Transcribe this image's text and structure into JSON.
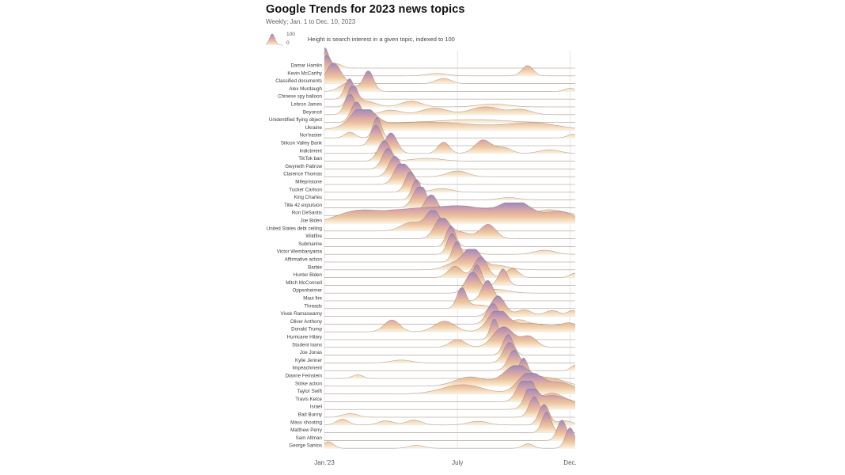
{
  "header": {
    "title": "Google Trends for 2023 news topics",
    "subtitle": "Weekly; Jan. 1 to Dec. 10, 2023"
  },
  "legend": {
    "max_label": "100",
    "min_label": "0",
    "caption": "Height is search interest in a given topic, indexed to 100"
  },
  "axis": {
    "ticks": [
      {
        "label": "Jan.'23",
        "week": 0
      },
      {
        "label": "July",
        "week": 26
      },
      {
        "label": "Dec.",
        "week": 48
      }
    ]
  },
  "colors": {
    "ridge_gradient": [
      "#9c8ac0",
      "#d5a2a8",
      "#edc59e",
      "#fcf1de"
    ],
    "ridge_offsets": [
      0,
      0.35,
      0.68,
      1
    ],
    "ridge_stroke": "rgba(122,92,86,0.5)",
    "gridline": "#dadada",
    "row_line": "#e7e1d6",
    "title": "#111111",
    "subtitle": "#666666",
    "label": "#3c3c3c",
    "axis_label": "#555555"
  },
  "chart_data": {
    "type": "ridgeline",
    "title": "Google Trends for 2023 news topics",
    "x_unit": "week",
    "x_range": [
      0,
      49
    ],
    "value_range": [
      0,
      100
    ],
    "note": "Each series is weekly Google search interest indexed to 100; curves reconstructed as gaussian peaks {week, value, width}",
    "series": [
      {
        "name": "Damar Hamlin",
        "peaks": [
          {
            "week": 0,
            "value": 100,
            "width": 0.8
          },
          {
            "week": 2.5,
            "value": 20,
            "width": 1
          }
        ]
      },
      {
        "name": "Kevin McCarthy",
        "peaks": [
          {
            "week": 0.5,
            "value": 100,
            "width": 0.9
          },
          {
            "week": 22,
            "value": 12,
            "width": 2
          },
          {
            "week": 39.7,
            "value": 50,
            "width": 1.1
          }
        ]
      },
      {
        "name": "Classified documents",
        "peaks": [
          {
            "week": 1.8,
            "value": 100,
            "width": 1.4
          },
          {
            "week": 23.3,
            "value": 25,
            "width": 1.5
          }
        ]
      },
      {
        "name": "Alex Murdaugh",
        "peaks": [
          {
            "week": 4.5,
            "value": 40,
            "width": 1.5
          },
          {
            "week": 8.6,
            "value": 100,
            "width": 1
          },
          {
            "week": 48,
            "value": 15,
            "width": 1
          }
        ]
      },
      {
        "name": "Chinese spy balloon",
        "peaks": [
          {
            "week": 4.9,
            "value": 100,
            "width": 0.9
          }
        ]
      },
      {
        "name": "Lebron James",
        "peaks": [
          {
            "week": 5.5,
            "value": 100,
            "width": 0.9
          },
          {
            "week": 8,
            "value": 28,
            "width": 2
          },
          {
            "week": 17,
            "value": 28,
            "width": 2
          },
          {
            "week": 33,
            "value": 14,
            "width": 3
          }
        ]
      },
      {
        "name": "Beyoncé",
        "peaks": [
          {
            "week": 5,
            "value": 100,
            "width": 1
          },
          {
            "week": 13,
            "value": 22,
            "width": 2
          },
          {
            "week": 21.5,
            "value": 32,
            "width": 2.5
          },
          {
            "week": 31.5,
            "value": 38,
            "width": 3
          },
          {
            "week": 38.5,
            "value": 24,
            "width": 2
          }
        ]
      },
      {
        "name": "Unidentified flying object",
        "peaks": [
          {
            "week": 6.3,
            "value": 100,
            "width": 1.1
          },
          {
            "week": 29,
            "value": 14,
            "width": 6
          }
        ]
      },
      {
        "name": "Ukraine",
        "peaks": [
          {
            "week": 7.5,
            "value": 100,
            "width": 2.2
          },
          {
            "week": 20,
            "value": 40,
            "width": 10
          },
          {
            "week": 41,
            "value": 32,
            "width": 5
          }
        ]
      },
      {
        "name": "Nor'easter",
        "peaks": [
          {
            "week": 5,
            "value": 28,
            "width": 1
          },
          {
            "week": 10.3,
            "value": 100,
            "width": 0.8
          },
          {
            "week": 48.5,
            "value": 18,
            "width": 1
          }
        ]
      },
      {
        "name": "Silicon Valley Bank",
        "peaks": [
          {
            "week": 10.1,
            "value": 100,
            "width": 1
          }
        ]
      },
      {
        "name": "Indictment",
        "peaks": [
          {
            "week": 13,
            "value": 100,
            "width": 1.2
          },
          {
            "week": 23.3,
            "value": 55,
            "width": 1.1
          },
          {
            "week": 31,
            "value": 65,
            "width": 1.6
          },
          {
            "week": 35,
            "value": 28,
            "width": 1.5
          },
          {
            "week": 44,
            "value": 18,
            "width": 2
          }
        ]
      },
      {
        "name": "TikTok ban",
        "peaks": [
          {
            "week": 11.7,
            "value": 100,
            "width": 1.2
          },
          {
            "week": 20,
            "value": 14,
            "width": 3
          }
        ]
      },
      {
        "name": "Gwyneth Paltrow",
        "peaks": [
          {
            "week": 12.4,
            "value": 100,
            "width": 1.1
          }
        ]
      },
      {
        "name": "Clarence Thomas",
        "peaks": [
          {
            "week": 13.8,
            "value": 100,
            "width": 1.2
          },
          {
            "week": 26,
            "value": 28,
            "width": 2
          }
        ]
      },
      {
        "name": "Mifepristone",
        "peaks": [
          {
            "week": 14.8,
            "value": 100,
            "width": 1.2
          },
          {
            "week": 16.8,
            "value": 45,
            "width": 1
          }
        ]
      },
      {
        "name": "Tucker Carlson",
        "peaks": [
          {
            "week": 16.8,
            "value": 100,
            "width": 1
          },
          {
            "week": 23,
            "value": 18,
            "width": 2
          }
        ]
      },
      {
        "name": "King Charles",
        "peaks": [
          {
            "week": 18,
            "value": 100,
            "width": 0.9
          },
          {
            "week": 36,
            "value": 12,
            "width": 2
          }
        ]
      },
      {
        "name": "Title 42 expulsion",
        "peaks": [
          {
            "week": 17.5,
            "value": 38,
            "width": 1
          },
          {
            "week": 19,
            "value": 100,
            "width": 1
          }
        ]
      },
      {
        "name": "Ron DeSantis",
        "peaks": [
          {
            "week": 14,
            "value": 28,
            "width": 3
          },
          {
            "week": 20.9,
            "value": 100,
            "width": 1.3
          },
          {
            "week": 33.8,
            "value": 40,
            "width": 2
          },
          {
            "week": 44,
            "value": 28,
            "width": 3
          }
        ]
      },
      {
        "name": "Joe Biden",
        "peaks": [
          {
            "week": 6,
            "value": 50,
            "width": 4
          },
          {
            "week": 17,
            "value": 65,
            "width": 6
          },
          {
            "week": 28,
            "value": 70,
            "width": 5
          },
          {
            "week": 37.5,
            "value": 100,
            "width": 3
          },
          {
            "week": 46,
            "value": 55,
            "width": 3
          }
        ]
      },
      {
        "name": "United States debt ceiling",
        "peaks": [
          {
            "week": 17,
            "value": 42,
            "width": 2
          },
          {
            "week": 21.3,
            "value": 100,
            "width": 1.4
          }
        ]
      },
      {
        "name": "Wildfire",
        "peaks": [
          {
            "week": 22.9,
            "value": 100,
            "width": 1.4
          },
          {
            "week": 26.5,
            "value": 32,
            "width": 2
          },
          {
            "week": 32,
            "value": 70,
            "width": 1.5
          }
        ]
      },
      {
        "name": "Submarine",
        "peaks": [
          {
            "week": 24.7,
            "value": 100,
            "width": 0.9
          }
        ]
      },
      {
        "name": "Victor Wembanyama",
        "peaks": [
          {
            "week": 24.9,
            "value": 100,
            "width": 0.9
          },
          {
            "week": 28,
            "value": 22,
            "width": 1.5
          },
          {
            "week": 43,
            "value": 20,
            "width": 2
          }
        ]
      },
      {
        "name": "Affirmative action",
        "peaks": [
          {
            "week": 25.9,
            "value": 100,
            "width": 0.9
          }
        ]
      },
      {
        "name": "Barbie",
        "peaks": [
          {
            "week": 25.5,
            "value": 32,
            "width": 2
          },
          {
            "week": 28.9,
            "value": 100,
            "width": 1.6
          },
          {
            "week": 33.5,
            "value": 22,
            "width": 2.5
          }
        ]
      },
      {
        "name": "Hunter Biden",
        "peaks": [
          {
            "week": 25.5,
            "value": 55,
            "width": 1.3
          },
          {
            "week": 30.5,
            "value": 100,
            "width": 1.3
          },
          {
            "week": 36.7,
            "value": 45,
            "width": 1.2
          },
          {
            "week": 49,
            "value": 22,
            "width": 1
          }
        ]
      },
      {
        "name": "Mitch McConnell",
        "peaks": [
          {
            "week": 29.8,
            "value": 100,
            "width": 0.9
          },
          {
            "week": 34.9,
            "value": 80,
            "width": 0.9
          }
        ]
      },
      {
        "name": "Oppenheimer",
        "peaks": [
          {
            "week": 28.9,
            "value": 100,
            "width": 1.3
          },
          {
            "week": 33.5,
            "value": 18,
            "width": 2.5
          }
        ]
      },
      {
        "name": "Maui fire",
        "peaks": [
          {
            "week": 31.9,
            "value": 100,
            "width": 1.1
          }
        ]
      },
      {
        "name": "Threads",
        "peaks": [
          {
            "week": 26.8,
            "value": 100,
            "width": 0.9
          },
          {
            "week": 30,
            "value": 18,
            "width": 2
          }
        ]
      },
      {
        "name": "Vivek Ramaswamy",
        "peaks": [
          {
            "week": 33.9,
            "value": 100,
            "width": 1.4
          },
          {
            "week": 39,
            "value": 32,
            "width": 1.5
          },
          {
            "week": 44.5,
            "value": 28,
            "width": 1.5
          },
          {
            "week": 48.5,
            "value": 28,
            "width": 1
          }
        ]
      },
      {
        "name": "Oliver Anthony",
        "peaks": [
          {
            "week": 32.9,
            "value": 100,
            "width": 1.2
          },
          {
            "week": 38,
            "value": 22,
            "width": 1.5
          }
        ]
      },
      {
        "name": "Donald Trump",
        "peaks": [
          {
            "week": 13.2,
            "value": 58,
            "width": 1.5
          },
          {
            "week": 23.5,
            "value": 52,
            "width": 2
          },
          {
            "week": 33.8,
            "value": 100,
            "width": 1.8
          },
          {
            "week": 40,
            "value": 42,
            "width": 4
          },
          {
            "week": 48,
            "value": 38,
            "width": 2
          }
        ]
      },
      {
        "name": "Hurricane Hilary",
        "peaks": [
          {
            "week": 33.2,
            "value": 100,
            "width": 0.8
          }
        ]
      },
      {
        "name": "Student loans",
        "peaks": [
          {
            "week": 26,
            "value": 38,
            "width": 1.5
          },
          {
            "week": 35,
            "value": 100,
            "width": 2
          },
          {
            "week": 40,
            "value": 52,
            "width": 1.5
          }
        ]
      },
      {
        "name": "Joe Jonas",
        "peaks": [
          {
            "week": 35.9,
            "value": 100,
            "width": 1
          }
        ]
      },
      {
        "name": "Kylie Jenner",
        "peaks": [
          {
            "week": 15,
            "value": 14,
            "width": 2
          },
          {
            "week": 36.2,
            "value": 100,
            "width": 1.2
          }
        ]
      },
      {
        "name": "Impeachment",
        "peaks": [
          {
            "week": 37.1,
            "value": 100,
            "width": 1.2
          },
          {
            "week": 49,
            "value": 28,
            "width": 0.8
          }
        ]
      },
      {
        "name": "Dianne Feinstein",
        "peaks": [
          {
            "week": 6.5,
            "value": 18,
            "width": 1
          },
          {
            "week": 38.9,
            "value": 100,
            "width": 0.9
          }
        ]
      },
      {
        "name": "Strike action",
        "peaks": [
          {
            "week": 28.5,
            "value": 45,
            "width": 3
          },
          {
            "week": 37.5,
            "value": 100,
            "width": 2.5
          },
          {
            "week": 44,
            "value": 38,
            "width": 3
          }
        ]
      },
      {
        "name": "Taylor Swift",
        "peaks": [
          {
            "week": 27,
            "value": 45,
            "width": 4
          },
          {
            "week": 40,
            "value": 100,
            "width": 2.2
          },
          {
            "week": 46,
            "value": 55,
            "width": 3
          }
        ]
      },
      {
        "name": "Travis Kelce",
        "peaks": [
          {
            "week": 38.5,
            "value": 75,
            "width": 1.2
          },
          {
            "week": 40,
            "value": 100,
            "width": 1
          },
          {
            "week": 44.5,
            "value": 42,
            "width": 2
          }
        ]
      },
      {
        "name": "Israel",
        "peaks": [
          {
            "week": 40.3,
            "value": 100,
            "width": 1.1
          },
          {
            "week": 43.5,
            "value": 55,
            "width": 2.5
          },
          {
            "week": 47.5,
            "value": 35,
            "width": 2.5
          }
        ]
      },
      {
        "name": "Bad Bunny",
        "peaks": [
          {
            "week": 5,
            "value": 18,
            "width": 1.5
          },
          {
            "week": 41,
            "value": 100,
            "width": 1
          }
        ]
      },
      {
        "name": "Mass shooting",
        "peaks": [
          {
            "week": 3.5,
            "value": 28,
            "width": 1.2
          },
          {
            "week": 12,
            "value": 20,
            "width": 1.5
          },
          {
            "week": 17.5,
            "value": 24,
            "width": 1.5
          },
          {
            "week": 30,
            "value": 18,
            "width": 2
          },
          {
            "week": 42.9,
            "value": 100,
            "width": 1
          },
          {
            "week": 47,
            "value": 20,
            "width": 1.5
          }
        ]
      },
      {
        "name": "Matthew Perry",
        "peaks": [
          {
            "week": 43.4,
            "value": 100,
            "width": 0.9
          }
        ]
      },
      {
        "name": "Sam Altman",
        "peaks": [
          {
            "week": 46.4,
            "value": 100,
            "width": 0.9
          }
        ]
      },
      {
        "name": "George Santos",
        "peaks": [
          {
            "week": 0.8,
            "value": 32,
            "width": 1
          },
          {
            "week": 18,
            "value": 14,
            "width": 1.5
          },
          {
            "week": 39.8,
            "value": 22,
            "width": 1
          },
          {
            "week": 48,
            "value": 100,
            "width": 0.9
          }
        ]
      }
    ]
  }
}
